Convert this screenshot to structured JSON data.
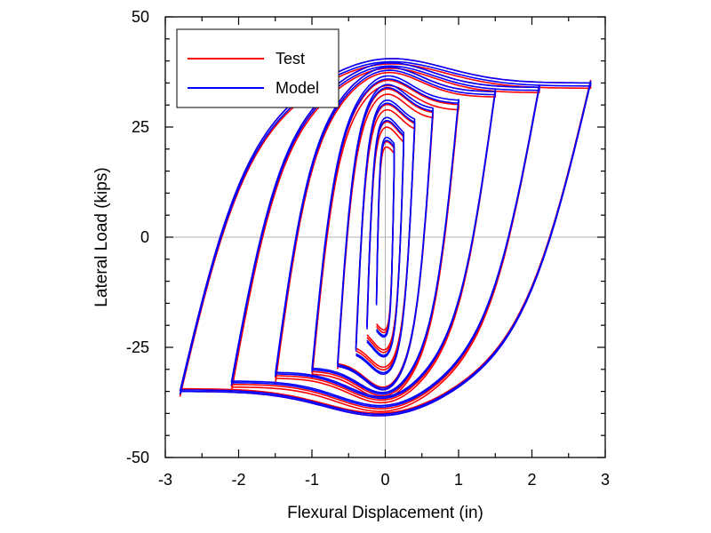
{
  "chart_data": {
    "type": "line",
    "title": "",
    "xlabel": "Flexural Displacement (in)",
    "ylabel": "Lateral Load (kips)",
    "xlim": [
      -3,
      3
    ],
    "ylim": [
      -50,
      50
    ],
    "x_ticks": [
      -3,
      -2,
      -1,
      0,
      1,
      2,
      3
    ],
    "y_ticks": [
      -50,
      -25,
      0,
      25,
      50
    ],
    "zero_reference_lines": true,
    "grid": false,
    "legend": {
      "position": "top-left",
      "entries": [
        "Test",
        "Model"
      ]
    },
    "series": [
      {
        "name": "Test",
        "color": "#ff0000",
        "cycles": [
          {
            "amp": 0.12,
            "fmax": 17,
            "fmin": -17,
            "fi": 8
          },
          {
            "amp": 0.25,
            "fmax": 21,
            "fmin": -21,
            "fi": 9
          },
          {
            "amp": 0.4,
            "fmax": 25,
            "fmin": -25,
            "fi": 9
          },
          {
            "amp": 0.65,
            "fmax": 28,
            "fmin": -29,
            "fi": 10
          },
          {
            "amp": 1.0,
            "fmax": 30,
            "fmin": -31,
            "fi": 10
          },
          {
            "amp": 1.5,
            "fmax": 33,
            "fmin": -32,
            "fi": 10
          },
          {
            "amp": 2.1,
            "fmax": 34,
            "fmin": -34,
            "fi": 10
          },
          {
            "amp": 2.8,
            "fmax": 35,
            "fmin": -35,
            "fi": 10
          }
        ]
      },
      {
        "name": "Model",
        "color": "#0000ff",
        "cycles": [
          {
            "amp": 0.12,
            "fmax": 18,
            "fmin": -18,
            "fi": 8
          },
          {
            "amp": 0.25,
            "fmax": 22,
            "fmin": -22,
            "fi": 9
          },
          {
            "amp": 0.4,
            "fmax": 26,
            "fmin": -26,
            "fi": 9
          },
          {
            "amp": 0.65,
            "fmax": 29,
            "fmin": -29,
            "fi": 10
          },
          {
            "amp": 1.0,
            "fmax": 31,
            "fmin": -30,
            "fi": 10
          },
          {
            "amp": 1.5,
            "fmax": 33,
            "fmin": -31,
            "fi": 10
          },
          {
            "amp": 2.1,
            "fmax": 34,
            "fmin": -33,
            "fi": 10
          },
          {
            "amp": 2.8,
            "fmax": 35,
            "fmin": -35,
            "fi": 10
          }
        ]
      }
    ]
  }
}
